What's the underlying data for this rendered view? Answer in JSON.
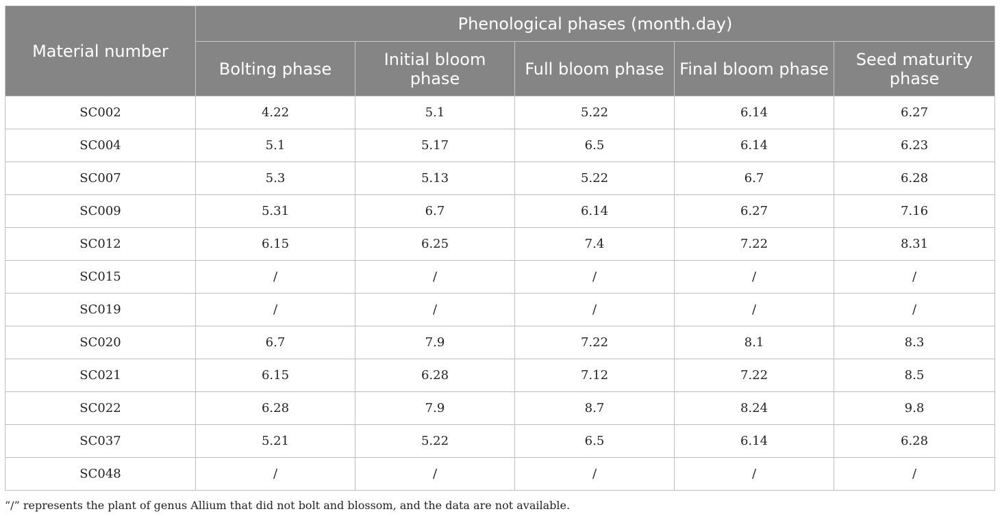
{
  "table": {
    "row_header": "Material number",
    "group_header": "Phenological phases (month.day)",
    "columns": [
      "Bolting phase",
      "Initial bloom phase",
      "Full bloom phase",
      "Final bloom phase",
      "Seed maturity phase"
    ],
    "rows": [
      {
        "material": "SC002",
        "values": [
          "4.22",
          "5.1",
          "5.22",
          "6.14",
          "6.27"
        ]
      },
      {
        "material": "SC004",
        "values": [
          "5.1",
          "5.17",
          "6.5",
          "6.14",
          "6.23"
        ]
      },
      {
        "material": "SC007",
        "values": [
          "5.3",
          "5.13",
          "5.22",
          "6.7",
          "6.28"
        ]
      },
      {
        "material": "SC009",
        "values": [
          "5.31",
          "6.7",
          "6.14",
          "6.27",
          "7.16"
        ]
      },
      {
        "material": "SC012",
        "values": [
          "6.15",
          "6.25",
          "7.4",
          "7.22",
          "8.31"
        ]
      },
      {
        "material": "SC015",
        "values": [
          "/",
          "/",
          "/",
          "/",
          "/"
        ]
      },
      {
        "material": "SC019",
        "values": [
          "/",
          "/",
          "/",
          "/",
          "/"
        ]
      },
      {
        "material": "SC020",
        "values": [
          "6.7",
          "7.9",
          "7.22",
          "8.1",
          "8.3"
        ]
      },
      {
        "material": "SC021",
        "values": [
          "6.15",
          "6.28",
          "7.12",
          "7.22",
          "8.5"
        ]
      },
      {
        "material": "SC022",
        "values": [
          "6.28",
          "7.9",
          "8.7",
          "8.24",
          "9.8"
        ]
      },
      {
        "material": "SC037",
        "values": [
          "5.21",
          "5.22",
          "6.5",
          "6.14",
          "6.28"
        ]
      },
      {
        "material": "SC048",
        "values": [
          "/",
          "/",
          "/",
          "/",
          "/"
        ]
      }
    ]
  },
  "footnote": "“/” represents the plant of genus Allium that did not bolt and blossom, and the data are not available.",
  "colors": {
    "header_bg": "#858585",
    "header_text": "#ffffff",
    "grid": "#bdbdbd"
  }
}
